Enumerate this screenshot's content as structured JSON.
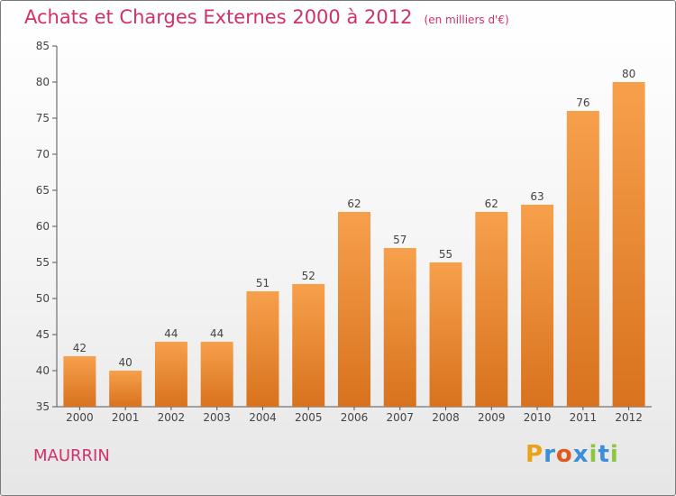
{
  "chart_data": {
    "type": "bar",
    "title": "Achats et Charges Externes 2000 à 2012",
    "unit_label": "(en milliers d'€)",
    "categories": [
      "2000",
      "2001",
      "2002",
      "2003",
      "2004",
      "2005",
      "2006",
      "2007",
      "2008",
      "2009",
      "2010",
      "2011",
      "2012"
    ],
    "values": [
      42,
      40,
      44,
      44,
      51,
      52,
      62,
      57,
      55,
      62,
      63,
      76,
      80
    ],
    "ylim": [
      35,
      85
    ],
    "yticks": [
      35,
      40,
      45,
      50,
      55,
      60,
      65,
      70,
      75,
      80,
      85
    ],
    "xlabel": "",
    "ylabel": "",
    "grid": false,
    "legend": "none",
    "colors": {
      "bar_top": "#f7a04c",
      "bar_bottom": "#d8721e",
      "title": "#d2306a",
      "axis": "#555555"
    }
  },
  "commune": "MAURRIN",
  "brand": {
    "letters": [
      "P",
      "r",
      "o",
      "x",
      "i",
      "t",
      "i"
    ],
    "colors": [
      "#e9a21a",
      "#3c8ed9",
      "#e05a1f",
      "#3c8ed9",
      "#8cc63f",
      "#3c8ed9",
      "#8cc63f"
    ]
  }
}
